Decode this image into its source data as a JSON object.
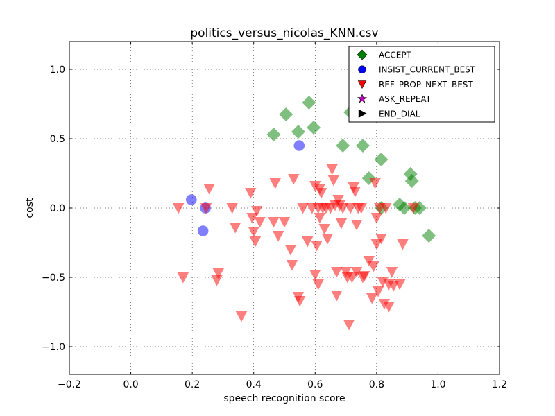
{
  "chart_data": {
    "type": "scatter",
    "title": "politics_versus_nicolas_KNN.csv",
    "xlabel": "speech recognition score",
    "ylabel": "cost",
    "xlim": [
      -0.2,
      1.2
    ],
    "ylim": [
      -1.2,
      1.2
    ],
    "xticks": [
      -0.2,
      0.0,
      0.2,
      0.4,
      0.6,
      0.8,
      1.0,
      1.2
    ],
    "yticks": [
      -1.0,
      -0.5,
      0.0,
      0.5,
      1.0
    ],
    "xtick_labels": [
      "−0.2",
      "0.0",
      "0.2",
      "0.4",
      "0.6",
      "0.8",
      "1.0",
      "1.2"
    ],
    "ytick_labels": [
      "−1.0",
      "−0.5",
      "0.0",
      "0.5",
      "1.0"
    ],
    "grid": true,
    "legend_position": "top-right",
    "series": [
      {
        "name": "ACCEPT",
        "marker": "diamond",
        "color": "#008000",
        "alpha": 0.5,
        "points": [
          [
            0.465,
            0.53
          ],
          [
            0.505,
            0.675
          ],
          [
            0.545,
            0.55
          ],
          [
            0.58,
            0.76
          ],
          [
            0.595,
            0.58
          ],
          [
            0.69,
            0.45
          ],
          [
            0.715,
            0.69
          ],
          [
            0.755,
            0.45
          ],
          [
            0.775,
            0.215
          ],
          [
            0.815,
            0.35
          ],
          [
            0.855,
            0.69
          ],
          [
            0.875,
            0.025
          ],
          [
            0.89,
            0.0
          ],
          [
            0.91,
            0.245
          ],
          [
            0.915,
            0.195
          ],
          [
            0.925,
            0.0
          ],
          [
            0.94,
            0.0
          ],
          [
            0.97,
            -0.2
          ],
          [
            0.815,
            0.0
          ]
        ]
      },
      {
        "name": "INSIST_CURRENT_BEST",
        "marker": "circle",
        "color": "#0000ff",
        "alpha": 0.5,
        "points": [
          [
            0.197,
            0.06
          ],
          [
            0.235,
            -0.165
          ],
          [
            0.243,
            0.0
          ],
          [
            0.548,
            0.45
          ]
        ]
      },
      {
        "name": "REF_PROP_NEXT_BEST",
        "marker": "triangle-down",
        "color": "#ff0000",
        "alpha": 0.5,
        "points": [
          [
            0.155,
            0.0
          ],
          [
            0.17,
            -0.5
          ],
          [
            0.245,
            0.0
          ],
          [
            0.255,
            0.14
          ],
          [
            0.28,
            -0.52
          ],
          [
            0.285,
            -0.47
          ],
          [
            0.33,
            0.0
          ],
          [
            0.34,
            -0.14
          ],
          [
            0.36,
            -0.78
          ],
          [
            0.39,
            0.11
          ],
          [
            0.395,
            -0.07
          ],
          [
            0.4,
            -0.17
          ],
          [
            0.405,
            -0.24
          ],
          [
            0.41,
            -0.02
          ],
          [
            0.42,
            -0.1
          ],
          [
            0.465,
            -0.1
          ],
          [
            0.47,
            0.18
          ],
          [
            0.48,
            -0.2
          ],
          [
            0.5,
            -0.1
          ],
          [
            0.52,
            -0.3
          ],
          [
            0.525,
            -0.41
          ],
          [
            0.53,
            0.21
          ],
          [
            0.545,
            -0.64
          ],
          [
            0.55,
            -0.67
          ],
          [
            0.56,
            0.0
          ],
          [
            0.575,
            -0.24
          ],
          [
            0.59,
            0.0
          ],
          [
            0.6,
            -0.48
          ],
          [
            0.6,
            0.16
          ],
          [
            0.605,
            -0.27
          ],
          [
            0.61,
            0.0
          ],
          [
            0.61,
            -0.55
          ],
          [
            0.615,
            -0.07
          ],
          [
            0.615,
            0.14
          ],
          [
            0.62,
            0.11
          ],
          [
            0.625,
            0.0
          ],
          [
            0.63,
            -0.15
          ],
          [
            0.635,
            0.0
          ],
          [
            0.64,
            -0.22
          ],
          [
            0.65,
            0.0
          ],
          [
            0.655,
            0.28
          ],
          [
            0.66,
            0.2
          ],
          [
            0.665,
            0.02
          ],
          [
            0.67,
            -0.46
          ],
          [
            0.67,
            -0.63
          ],
          [
            0.675,
            0.06
          ],
          [
            0.68,
            0.02
          ],
          [
            0.685,
            -0.11
          ],
          [
            0.69,
            0.0
          ],
          [
            0.7,
            -0.46
          ],
          [
            0.705,
            -0.5
          ],
          [
            0.71,
            -0.84
          ],
          [
            0.715,
            0.0
          ],
          [
            0.72,
            -0.5
          ],
          [
            0.725,
            0.15
          ],
          [
            0.73,
            0.12
          ],
          [
            0.735,
            -0.46
          ],
          [
            0.735,
            -0.12
          ],
          [
            0.74,
            0.0
          ],
          [
            0.75,
            0.0
          ],
          [
            0.755,
            -0.5
          ],
          [
            0.76,
            -0.49
          ],
          [
            0.775,
            -0.38
          ],
          [
            0.785,
            -0.65
          ],
          [
            0.79,
            -0.42
          ],
          [
            0.795,
            0.18
          ],
          [
            0.8,
            -0.07
          ],
          [
            0.8,
            -0.26
          ],
          [
            0.805,
            -0.6
          ],
          [
            0.81,
            0.0
          ],
          [
            0.815,
            -0.22
          ],
          [
            0.82,
            -0.53
          ],
          [
            0.825,
            -0.69
          ],
          [
            0.83,
            0.0
          ],
          [
            0.84,
            -0.55
          ],
          [
            0.84,
            -0.71
          ],
          [
            0.85,
            -0.46
          ],
          [
            0.855,
            -0.56
          ],
          [
            0.875,
            -0.55
          ],
          [
            0.885,
            -0.26
          ],
          [
            0.92,
            0.0
          ]
        ]
      },
      {
        "name": "ASK_REPEAT",
        "marker": "star",
        "color": "#bf00bf",
        "alpha": 1.0,
        "points": []
      },
      {
        "name": "END_DIAL",
        "marker": "triangle-right",
        "color": "#000000",
        "alpha": 1.0,
        "points": []
      }
    ]
  }
}
